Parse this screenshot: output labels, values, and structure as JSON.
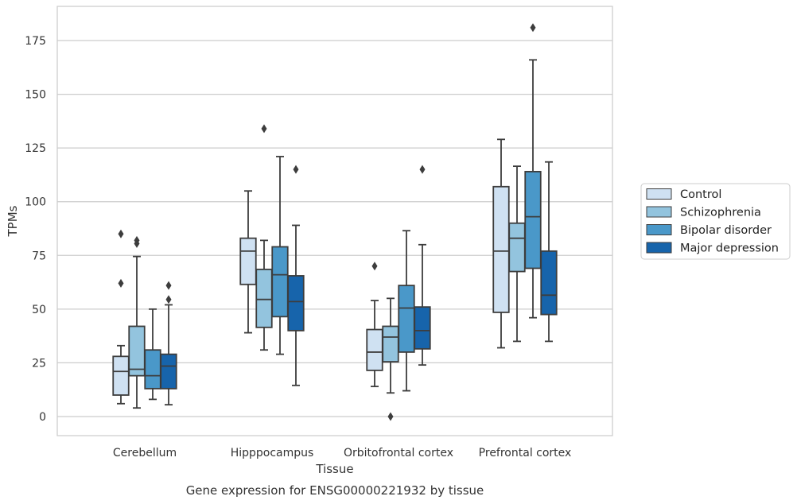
{
  "chart_data": {
    "type": "box",
    "xlabel": "Tissue",
    "ylabel": "TPMs",
    "caption": "Gene expression for ENSG00000221932 by tissue",
    "ylim": [
      -8,
      190
    ],
    "yticks": [
      0,
      25,
      50,
      75,
      100,
      125,
      150,
      175
    ],
    "grid": "horizontal",
    "legend_position": "right",
    "categories": [
      "Cerebellum",
      "Hipppocampus",
      "Orbitofrontal cortex",
      "Prefrontal cortex"
    ],
    "series": [
      {
        "name": "Control",
        "color": "#cfe1f2",
        "boxes": [
          {
            "whislo": 6,
            "q1": 10,
            "med": 21,
            "q3": 28,
            "whishi": 33,
            "fliers": [
              62,
              85
            ]
          },
          {
            "whislo": 39,
            "q1": 61.5,
            "med": 77,
            "q3": 83,
            "whishi": 105,
            "fliers": []
          },
          {
            "whislo": 14,
            "q1": 21.5,
            "med": 30,
            "q3": 40.5,
            "whishi": 54,
            "fliers": [
              70
            ]
          },
          {
            "whislo": 32,
            "q1": 48.5,
            "med": 77,
            "q3": 107,
            "whishi": 129,
            "fliers": []
          }
        ]
      },
      {
        "name": "Schizophrenia",
        "color": "#93c4de",
        "boxes": [
          {
            "whislo": 4,
            "q1": 19,
            "med": 22,
            "q3": 42,
            "whishi": 74.5,
            "fliers": [
              80.5,
              82
            ]
          },
          {
            "whislo": 31,
            "q1": 41.5,
            "med": 54.5,
            "q3": 68.5,
            "whishi": 82,
            "fliers": [
              134
            ]
          },
          {
            "whislo": 11,
            "q1": 25.5,
            "med": 37,
            "q3": 42,
            "whishi": 55,
            "fliers": [
              0
            ]
          },
          {
            "whislo": 35,
            "q1": 67.5,
            "med": 83,
            "q3": 90,
            "whishi": 116.5,
            "fliers": []
          }
        ]
      },
      {
        "name": "Bipolar disorder",
        "color": "#4a98c9",
        "boxes": [
          {
            "whislo": 8,
            "q1": 13,
            "med": 19,
            "q3": 31,
            "whishi": 50,
            "fliers": []
          },
          {
            "whislo": 29,
            "q1": 46.5,
            "med": 66,
            "q3": 79,
            "whishi": 121,
            "fliers": []
          },
          {
            "whislo": 12,
            "q1": 30,
            "med": 50.5,
            "q3": 61,
            "whishi": 86.5,
            "fliers": []
          },
          {
            "whislo": 46,
            "q1": 69,
            "med": 93,
            "q3": 114,
            "whishi": 166,
            "fliers": [
              181
            ]
          }
        ]
      },
      {
        "name": "Major depression",
        "color": "#1764ab",
        "boxes": [
          {
            "whislo": 5.5,
            "q1": 13,
            "med": 23.5,
            "q3": 29,
            "whishi": 52,
            "fliers": [
              54.5,
              61
            ]
          },
          {
            "whislo": 14.5,
            "q1": 40,
            "med": 53.5,
            "q3": 65.5,
            "whishi": 89,
            "fliers": [
              115
            ]
          },
          {
            "whislo": 24,
            "q1": 31.5,
            "med": 40,
            "q3": 51,
            "whishi": 80,
            "fliers": [
              115
            ]
          },
          {
            "whislo": 35,
            "q1": 47.5,
            "med": 56.5,
            "q3": 77,
            "whishi": 118.5,
            "fliers": []
          }
        ]
      }
    ]
  }
}
